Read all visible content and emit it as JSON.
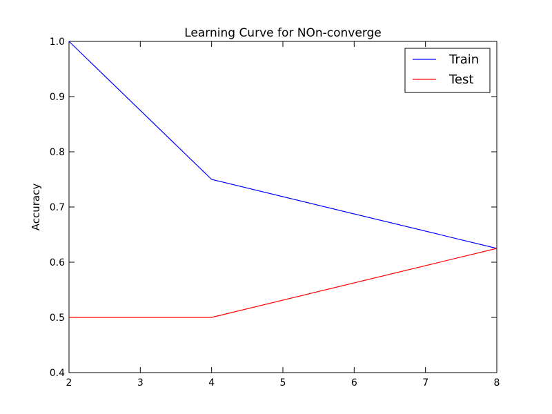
{
  "chart_data": {
    "type": "line",
    "title": "Learning Curve for NOn-converge",
    "xlabel": "",
    "ylabel": "Accuracy",
    "x": [
      2,
      4,
      8
    ],
    "xlim": [
      2,
      8
    ],
    "ylim": [
      0.4,
      1.0
    ],
    "xticks": [
      2,
      3,
      4,
      5,
      6,
      7,
      8
    ],
    "yticks": [
      0.4,
      0.5,
      0.6,
      0.7,
      0.8,
      0.9,
      1.0
    ],
    "xtick_labels": [
      "2",
      "3",
      "4",
      "5",
      "6",
      "7",
      "8"
    ],
    "ytick_labels": [
      "0.4",
      "0.5",
      "0.6",
      "0.7",
      "0.8",
      "0.9",
      "1.0"
    ],
    "grid": false,
    "legend_position": "top-right",
    "series": [
      {
        "name": "Train",
        "color": "#0000ff",
        "values": [
          1.0,
          0.75,
          0.625
        ]
      },
      {
        "name": "Test",
        "color": "#ff0000",
        "values": [
          0.5,
          0.5,
          0.625
        ]
      }
    ]
  }
}
